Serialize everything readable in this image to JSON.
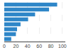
{
  "chart_data": {
    "type": "bar",
    "orientation": "horizontal",
    "categories": [
      null,
      null,
      null,
      null,
      null,
      null,
      null,
      null
    ],
    "values": [
      91,
      77,
      53,
      41,
      28,
      22,
      20,
      12
    ],
    "color": "#2e86c8",
    "xlim": [
      0,
      105
    ],
    "xticks": [
      0,
      20,
      40,
      60,
      80,
      100
    ],
    "grid": true,
    "tick_labels": "x"
  }
}
